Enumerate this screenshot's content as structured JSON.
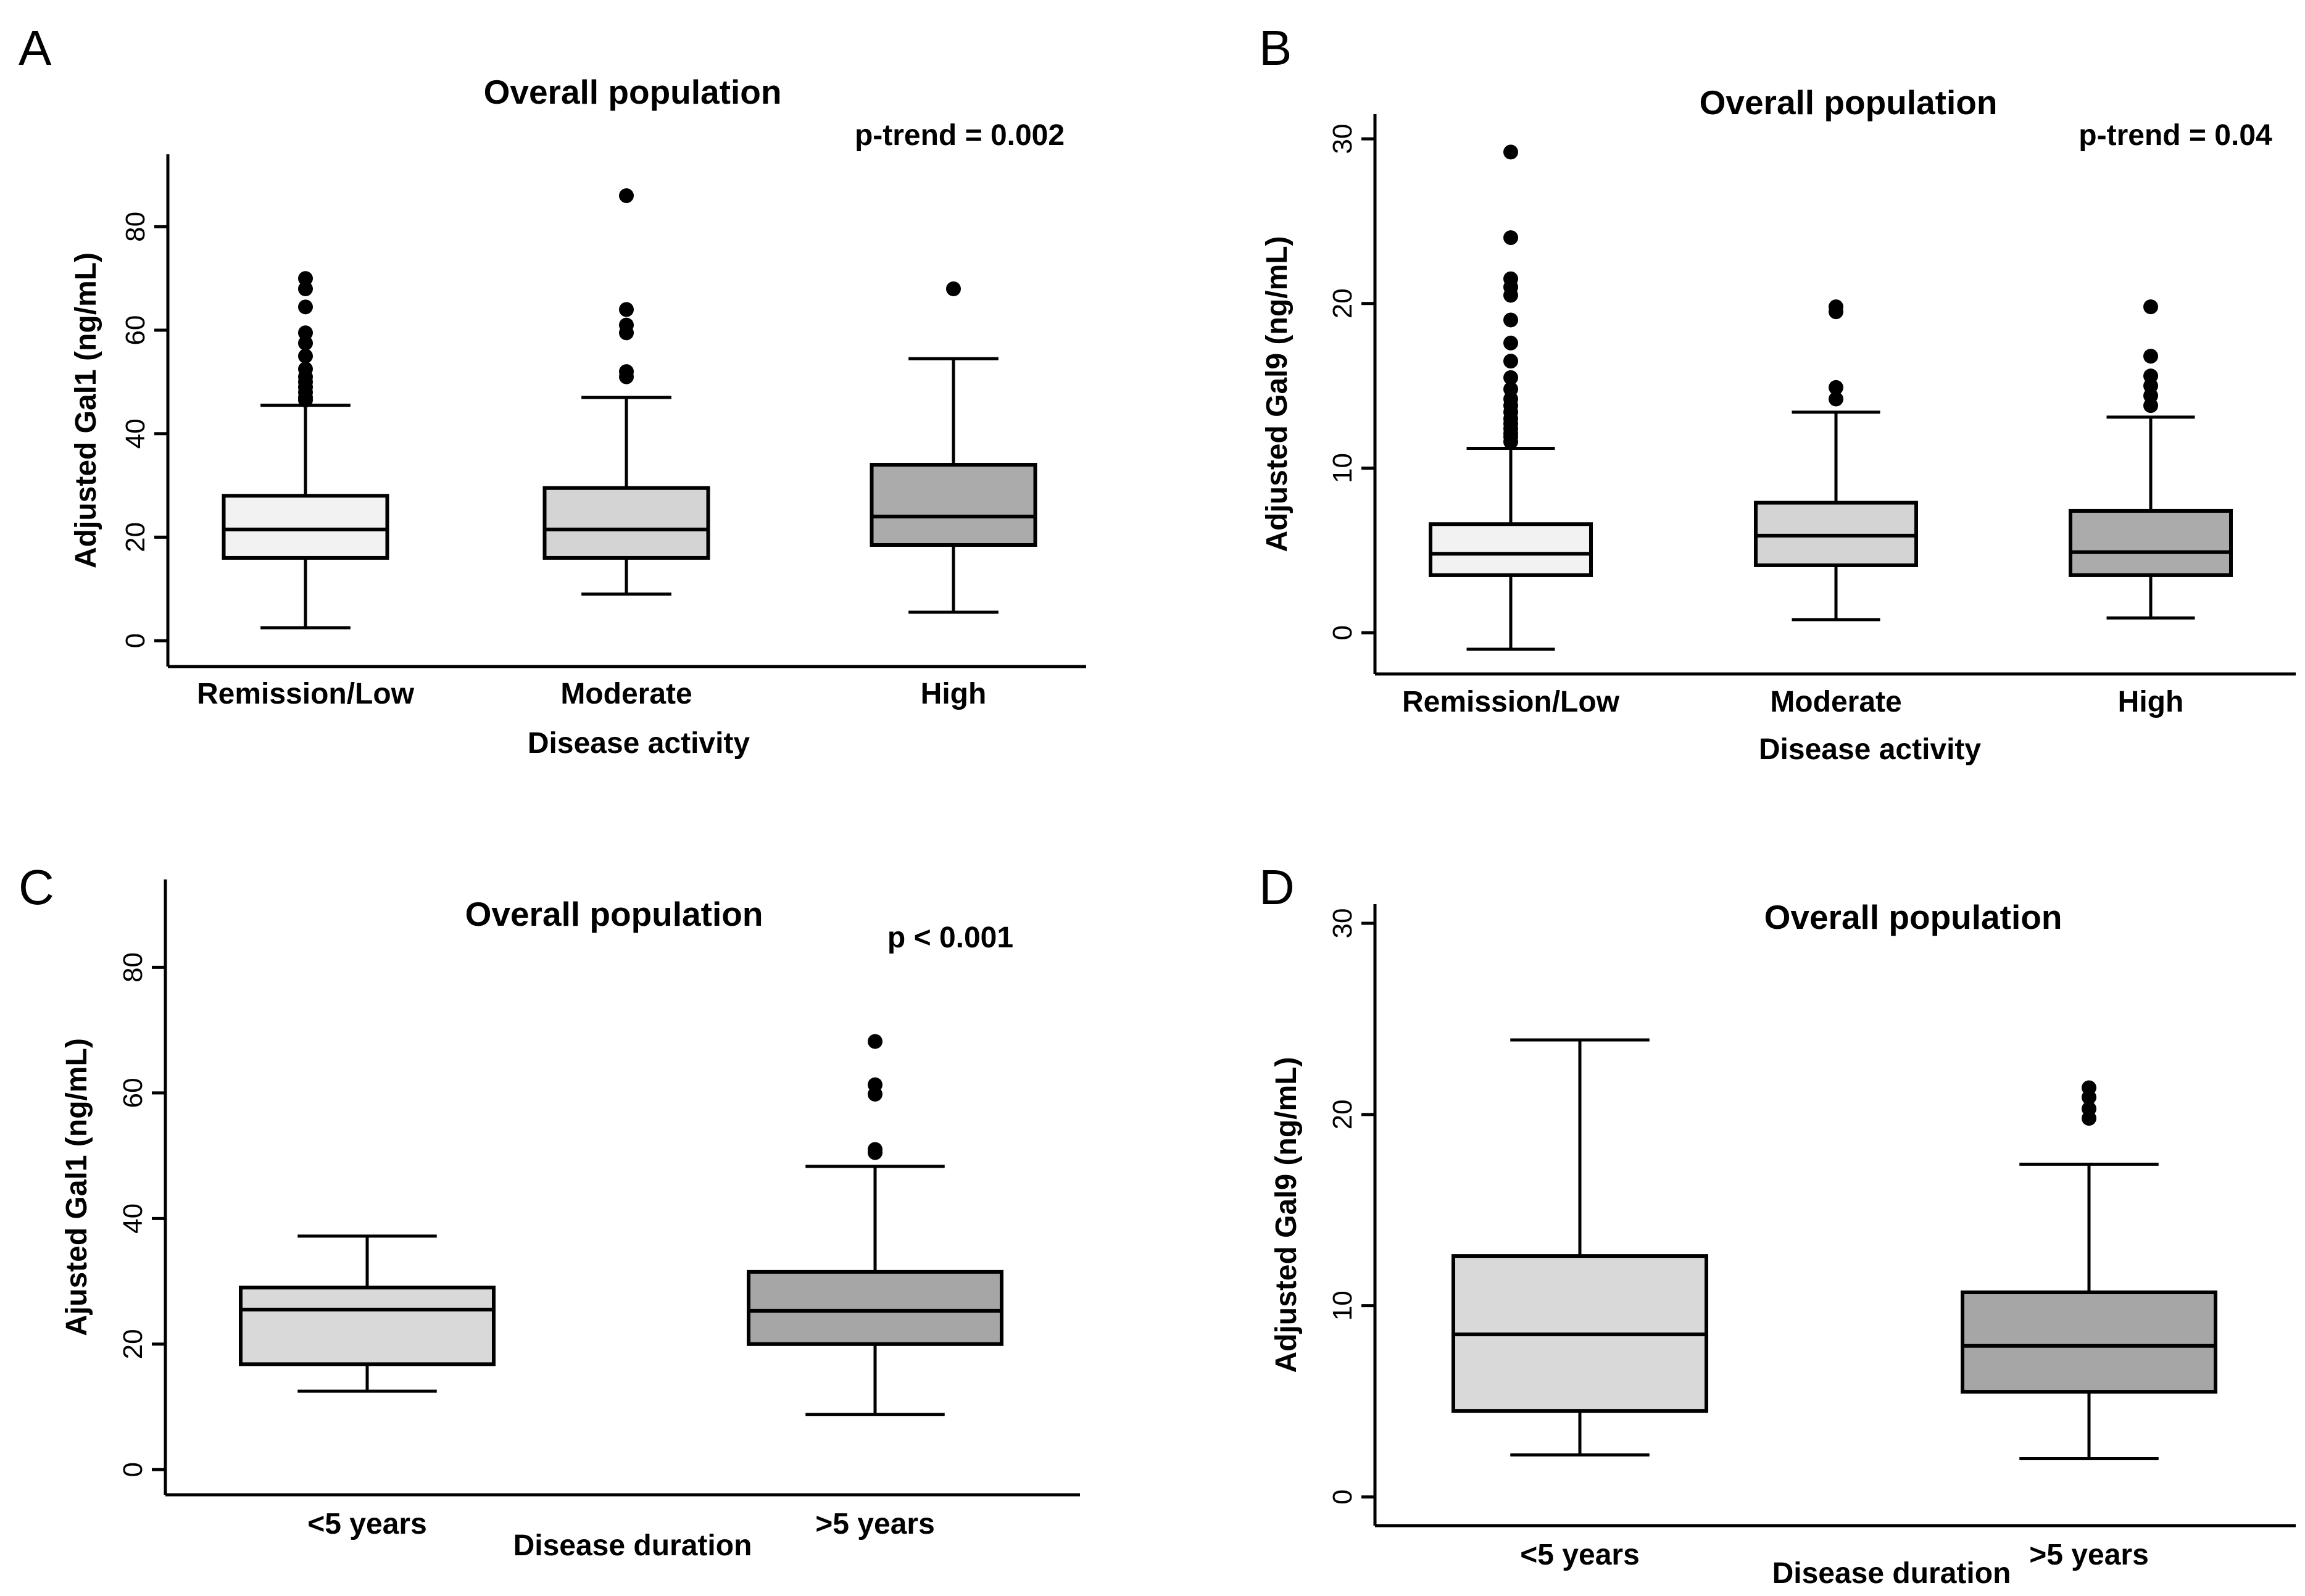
{
  "chart_data": [
    {
      "panel": "A",
      "type": "box",
      "title": "Overall population",
      "annotation": "p-trend = 0.002",
      "xlabel": "Disease activity",
      "ylabel": "Adjusted Gal1 (ng/mL)",
      "ylim": [
        -5,
        94
      ],
      "yticks": [
        0,
        20,
        40,
        60,
        80
      ],
      "categories": [
        "Remission/Low",
        "Moderate",
        "High"
      ],
      "box_colors": [
        "#f2f2f2",
        "#d4d4d4",
        "#ababab"
      ],
      "boxes": [
        {
          "category": "Remission/Low",
          "whisker_low": 2.5,
          "q1": 16,
          "median": 21.5,
          "q3": 28,
          "whisker_high": 45.5,
          "outliers": [
            70,
            68,
            64.5,
            59.5,
            57.5,
            55,
            52.5,
            51,
            50,
            49,
            48,
            47,
            46.5
          ]
        },
        {
          "category": "Moderate",
          "whisker_low": 9,
          "q1": 16,
          "median": 21.5,
          "q3": 29.5,
          "whisker_high": 47,
          "outliers": [
            86,
            64,
            61,
            59.5,
            52,
            51
          ]
        },
        {
          "category": "High",
          "whisker_low": 5.5,
          "q1": 18.5,
          "median": 24,
          "q3": 34,
          "whisker_high": 54.5,
          "outliers": [
            68
          ]
        }
      ]
    },
    {
      "panel": "B",
      "type": "box",
      "title": "Overall population",
      "annotation": "p-trend = 0.04",
      "xlabel": "Disease activity",
      "ylabel": "Adjusted Gal9 (ng/mL)",
      "ylim": [
        -2.5,
        31.5
      ],
      "yticks": [
        0,
        10,
        20,
        30
      ],
      "categories": [
        "Remission/Low",
        "Moderate",
        "High"
      ],
      "box_colors": [
        "#f2f2f2",
        "#d4d4d4",
        "#ababab"
      ],
      "boxes": [
        {
          "category": "Remission/Low",
          "whisker_low": -1,
          "q1": 3.5,
          "median": 4.8,
          "q3": 6.6,
          "whisker_high": 11.2,
          "outliers": [
            29.2,
            24,
            21.5,
            21,
            20.5,
            19,
            17.6,
            16.5,
            15.5,
            14.8,
            14.2,
            13.8,
            13.4,
            13,
            12.7,
            12.4,
            12.1,
            11.9,
            11.6
          ]
        },
        {
          "category": "Moderate",
          "whisker_low": 0.8,
          "q1": 4.1,
          "median": 5.9,
          "q3": 7.9,
          "whisker_high": 13.4,
          "outliers": [
            19.8,
            19.5,
            14.9,
            14.2
          ]
        },
        {
          "category": "High",
          "whisker_low": 0.9,
          "q1": 3.5,
          "median": 4.9,
          "q3": 7.4,
          "whisker_high": 13.1,
          "outliers": [
            19.8,
            16.8,
            15.6,
            15,
            14.4,
            13.8
          ]
        }
      ]
    },
    {
      "panel": "C",
      "type": "box",
      "title": "Overall population",
      "annotation": "p < 0.001",
      "xlabel": "Disease duration",
      "ylabel": "Ajusted Gal1 (ng/mL)",
      "ylim": [
        -4,
        94
      ],
      "yticks": [
        0,
        20,
        40,
        60,
        80
      ],
      "categories": [
        "<5 years",
        ">5 years"
      ],
      "box_colors": [
        "#d9d9d9",
        "#a6a6a6"
      ],
      "boxes": [
        {
          "category": "<5 years",
          "whisker_low": 12.5,
          "q1": 16.8,
          "median": 25.5,
          "q3": 29,
          "whisker_high": 37.2,
          "outliers": []
        },
        {
          "category": ">5 years",
          "whisker_low": 8.8,
          "q1": 20,
          "median": 25.3,
          "q3": 31.5,
          "whisker_high": 48.3,
          "outliers": [
            68.2,
            61.3,
            59.8,
            51,
            50.5
          ]
        }
      ]
    },
    {
      "panel": "D",
      "type": "box",
      "title": "Overall population",
      "annotation": "",
      "xlabel": "Disease duration",
      "ylabel": "Adjusted Gal9 (ng/mL)",
      "ylim": [
        -1.5,
        31
      ],
      "yticks": [
        0,
        10,
        20,
        30
      ],
      "categories": [
        "<5 years",
        ">5 years"
      ],
      "box_colors": [
        "#d9d9d9",
        "#a6a6a6"
      ],
      "boxes": [
        {
          "category": "<5 years",
          "whisker_low": 2.2,
          "q1": 4.5,
          "median": 8.5,
          "q3": 12.6,
          "whisker_high": 23.9,
          "outliers": []
        },
        {
          "category": ">5 years",
          "whisker_low": 2.0,
          "q1": 5.5,
          "median": 7.9,
          "q3": 10.7,
          "whisker_high": 17.4,
          "outliers": [
            21.4,
            20.9,
            20.3,
            19.8
          ]
        }
      ]
    }
  ]
}
